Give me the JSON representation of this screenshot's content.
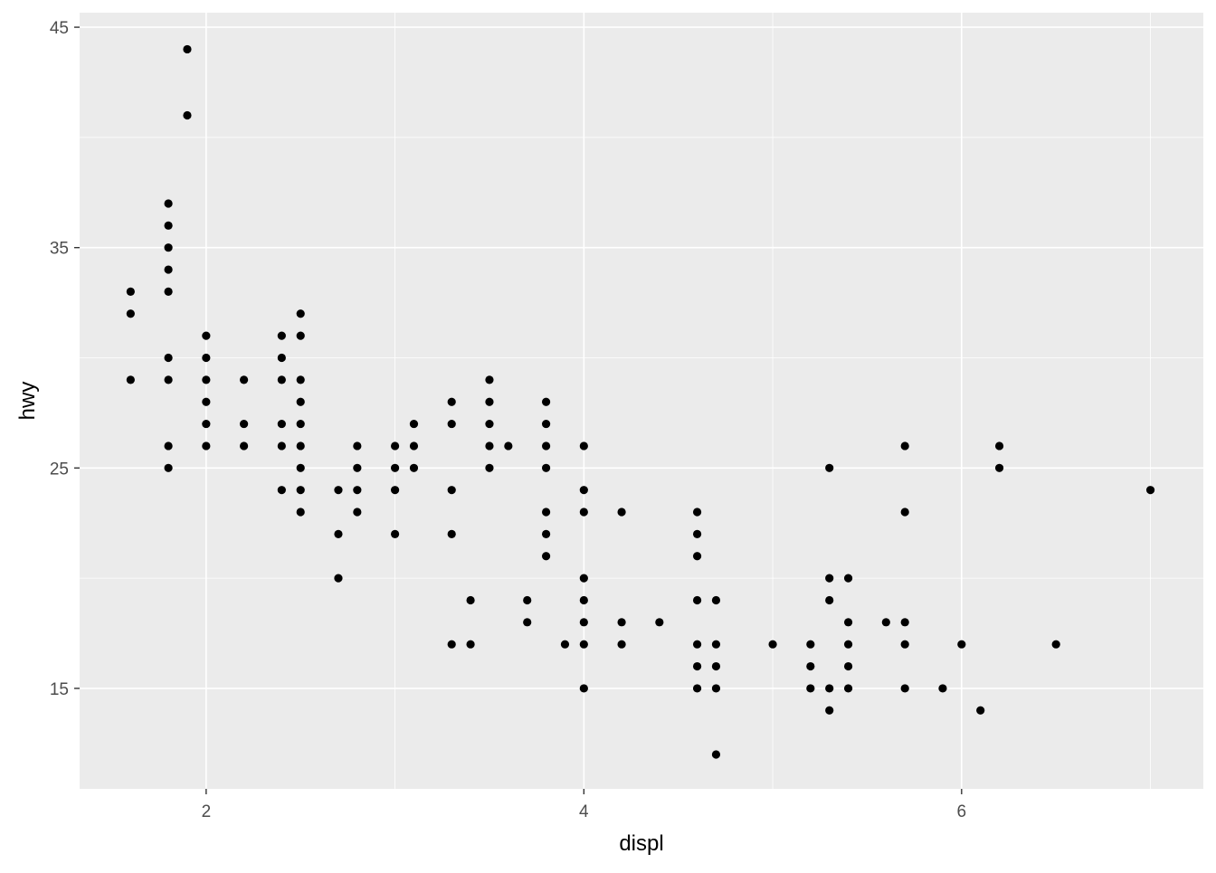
{
  "chart_data": {
    "type": "scatter",
    "title": "",
    "xlabel": "displ",
    "ylabel": "hwy",
    "xlim": [
      1.33,
      7.28
    ],
    "ylim": [
      10.44,
      45.66
    ],
    "x_ticks": [
      2,
      4,
      6
    ],
    "y_ticks": [
      15,
      25,
      35,
      45
    ],
    "x_minor": [
      3,
      5,
      7
    ],
    "y_minor": [
      20,
      30,
      40
    ],
    "grid": true,
    "colors": {
      "panel": "#EBEBEB",
      "grid": "#FFFFFF",
      "point": "#000000",
      "tick_text": "#4D4D4D"
    },
    "points": [
      [
        1.6,
        [
          33,
          32,
          29
        ]
      ],
      [
        1.8,
        [
          37,
          36,
          35,
          34,
          33,
          30,
          29,
          26,
          25
        ]
      ],
      [
        1.9,
        [
          44,
          41
        ]
      ],
      [
        2.0,
        [
          31,
          30,
          29,
          28,
          27,
          26
        ]
      ],
      [
        2.2,
        [
          29,
          27,
          26
        ]
      ],
      [
        2.4,
        [
          31,
          30,
          29,
          27,
          26,
          24
        ]
      ],
      [
        2.5,
        [
          32,
          31,
          29,
          28,
          27,
          26,
          25,
          24,
          23
        ]
      ],
      [
        2.7,
        [
          24,
          22,
          20
        ]
      ],
      [
        2.8,
        [
          26,
          25,
          24,
          23
        ]
      ],
      [
        3.0,
        [
          26,
          25,
          24,
          22
        ]
      ],
      [
        3.1,
        [
          27,
          26,
          25
        ]
      ],
      [
        3.3,
        [
          28,
          27,
          24,
          22,
          17
        ]
      ],
      [
        3.4,
        [
          19,
          17
        ]
      ],
      [
        3.5,
        [
          29,
          28,
          27,
          26,
          25
        ]
      ],
      [
        3.6,
        [
          26
        ]
      ],
      [
        3.7,
        [
          19,
          18
        ]
      ],
      [
        3.8,
        [
          28,
          27,
          26,
          25,
          23,
          22,
          21
        ]
      ],
      [
        3.9,
        [
          17
        ]
      ],
      [
        4.0,
        [
          26,
          24,
          23,
          20,
          19,
          18,
          17,
          15
        ]
      ],
      [
        4.2,
        [
          23,
          18,
          17
        ]
      ],
      [
        4.4,
        [
          18
        ]
      ],
      [
        4.6,
        [
          23,
          22,
          21,
          19,
          17,
          16,
          15
        ]
      ],
      [
        4.7,
        [
          19,
          17,
          16,
          15,
          12
        ]
      ],
      [
        5.0,
        [
          17
        ]
      ],
      [
        5.2,
        [
          17,
          16,
          15
        ]
      ],
      [
        5.3,
        [
          25,
          20,
          19,
          15,
          14
        ]
      ],
      [
        5.4,
        [
          20,
          18,
          17,
          16,
          15
        ]
      ],
      [
        5.6,
        [
          18
        ]
      ],
      [
        5.7,
        [
          26,
          23,
          18,
          17,
          15
        ]
      ],
      [
        5.9,
        [
          15
        ]
      ],
      [
        6.0,
        [
          17
        ]
      ],
      [
        6.1,
        [
          14
        ]
      ],
      [
        6.2,
        [
          26,
          25
        ]
      ],
      [
        6.5,
        [
          17
        ]
      ],
      [
        7.0,
        [
          24
        ]
      ]
    ]
  }
}
